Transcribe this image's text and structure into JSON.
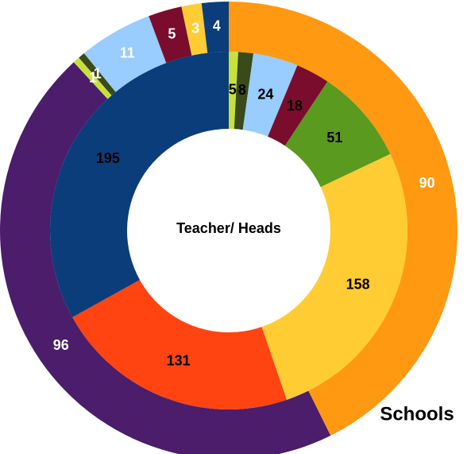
{
  "chart_data": {
    "type": "doughnut",
    "series": [
      {
        "name": "Schools",
        "values": [
          90,
          96,
          1,
          1,
          11,
          5,
          3,
          4
        ],
        "colors": [
          "#ff9912",
          "#4b1d6b",
          "#c8e03c",
          "#3a4a1a",
          "#99ccff",
          "#7a0c2e",
          "#ffcc33",
          "#0b3d7a"
        ]
      },
      {
        "name": "Teacher/ Heads",
        "values": [
          5,
          8,
          24,
          18,
          51,
          158,
          131,
          195
        ],
        "colors": [
          "#c8e03c",
          "#3a4a1a",
          "#99ccff",
          "#7a0c2e",
          "#5a9a1e",
          "#ffcc33",
          "#ff4411",
          "#0b3d7a"
        ]
      }
    ]
  }
}
